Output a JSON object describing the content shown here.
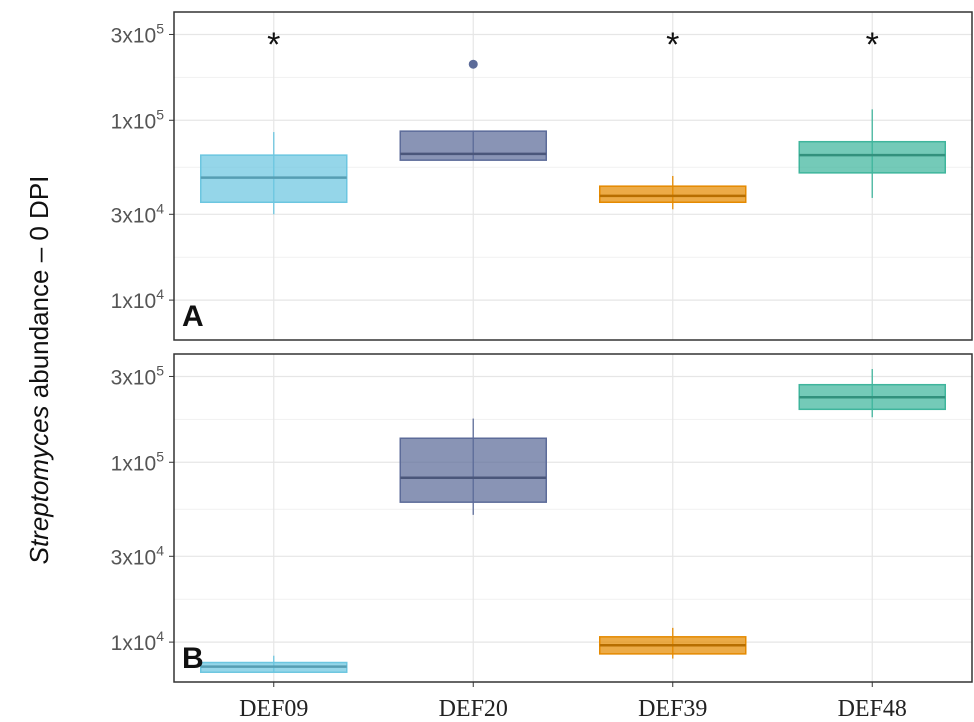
{
  "chart_data": {
    "type": "boxplot",
    "ylabel_italic": "Streptomyces",
    "ylabel_rest": " abundance – 0 DPI",
    "categories": [
      "DEF09",
      "DEF20",
      "DEF39",
      "DEF48"
    ],
    "colors": [
      "#6cc6e0",
      "#5c6b99",
      "#e58a00",
      "#3fb59c"
    ],
    "yscale": "log10",
    "yticks": [
      {
        "value": 10000,
        "base": "1x10",
        "exp": "4"
      },
      {
        "value": 30000,
        "base": "3x10",
        "exp": "4"
      },
      {
        "value": 100000,
        "base": "1x10",
        "exp": "5"
      },
      {
        "value": 300000,
        "base": "3x10",
        "exp": "5"
      }
    ],
    "panels": [
      {
        "label": "A",
        "ylim": [
          6000,
          400000
        ],
        "boxes": [
          {
            "category": "DEF09",
            "whisker_low": 30000,
            "q1": 35000,
            "median": 48000,
            "q3": 64000,
            "whisker_high": 86000,
            "outliers": [],
            "significant": true
          },
          {
            "category": "DEF20",
            "whisker_low": 60000,
            "q1": 60000,
            "median": 65000,
            "q3": 87000,
            "whisker_high": 87000,
            "outliers": [
              205000
            ],
            "significant": false
          },
          {
            "category": "DEF39",
            "whisker_low": 32000,
            "q1": 35000,
            "median": 38000,
            "q3": 43000,
            "whisker_high": 49000,
            "outliers": [],
            "significant": true
          },
          {
            "category": "DEF48",
            "whisker_low": 37000,
            "q1": 51000,
            "median": 64000,
            "q3": 76000,
            "whisker_high": 115000,
            "outliers": [],
            "significant": true
          }
        ]
      },
      {
        "label": "B",
        "ylim": [
          6000,
          400000
        ],
        "boxes": [
          {
            "category": "DEF09",
            "whisker_low": 6800,
            "q1": 6800,
            "median": 7300,
            "q3": 7700,
            "whisker_high": 8400,
            "outliers": [],
            "significant": false
          },
          {
            "category": "DEF20",
            "whisker_low": 51000,
            "q1": 60000,
            "median": 82000,
            "q3": 136000,
            "whisker_high": 175000,
            "outliers": [],
            "significant": false
          },
          {
            "category": "DEF39",
            "whisker_low": 8100,
            "q1": 8600,
            "median": 9600,
            "q3": 10700,
            "whisker_high": 12000,
            "outliers": [],
            "significant": false
          },
          {
            "category": "DEF48",
            "whisker_low": 178000,
            "q1": 197000,
            "median": 230000,
            "q3": 270000,
            "whisker_high": 330000,
            "outliers": [],
            "significant": false
          }
        ]
      }
    ],
    "significance_marker": "*",
    "grid": true
  }
}
